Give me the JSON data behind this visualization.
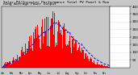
{
  "title": "Solar PV/Inverter Performance Total PV Panel & Running Average Power Output",
  "bg_color": "#c8c8c8",
  "plot_bg_color": "#c8c8c8",
  "yaxis_bg": "#ffffff",
  "bar_color": "#ff0000",
  "line_color": "#0000ff",
  "ylim": [
    0,
    400
  ],
  "yticks": [
    50,
    100,
    150,
    200,
    250,
    300,
    350,
    400
  ],
  "n_bars": 365,
  "title_fontsize": 3.2,
  "axis_fontsize": 3.0,
  "grid_color": "#ffffff"
}
